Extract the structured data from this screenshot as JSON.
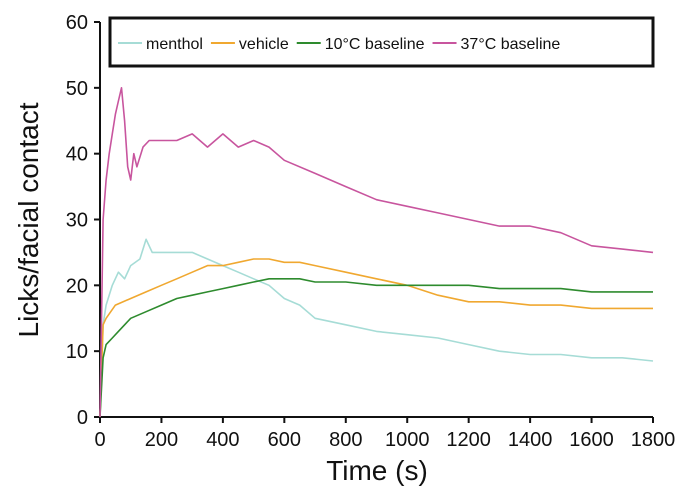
{
  "chart_data": {
    "type": "line",
    "xlabel": "Time (s)",
    "ylabel": "Licks/facial contact",
    "xlim": [
      0,
      1800
    ],
    "ylim": [
      0,
      60
    ],
    "xticks": [
      "0",
      "200",
      "400",
      "600",
      "800",
      "1000",
      "1200",
      "1400",
      "1600",
      "1800"
    ],
    "yticks": [
      "0",
      "10",
      "20",
      "30",
      "40",
      "50",
      "60"
    ],
    "grid": false,
    "legend_position": "top",
    "series": [
      {
        "name": "menthol",
        "color": "#a6dcd6",
        "x": [
          0,
          10,
          20,
          40,
          60,
          80,
          100,
          130,
          150,
          170,
          200,
          250,
          300,
          350,
          400,
          450,
          500,
          550,
          600,
          650,
          700,
          800,
          900,
          1000,
          1100,
          1200,
          1300,
          1400,
          1500,
          1600,
          1700,
          1800
        ],
        "y": [
          0,
          14,
          17,
          20,
          22,
          21,
          23,
          24,
          27,
          25,
          25,
          25,
          25,
          24,
          23,
          22,
          21,
          20,
          18,
          17,
          15,
          14,
          13,
          12.5,
          12,
          11,
          10,
          9.5,
          9.5,
          9,
          9,
          8.5
        ]
      },
      {
        "name": "vehicle",
        "color": "#f0a830",
        "x": [
          0,
          10,
          20,
          50,
          100,
          150,
          200,
          250,
          300,
          350,
          400,
          450,
          500,
          550,
          600,
          650,
          700,
          800,
          900,
          1000,
          1100,
          1200,
          1300,
          1400,
          1500,
          1600,
          1700,
          1800
        ],
        "y": [
          0,
          14,
          15,
          17,
          18,
          19,
          20,
          21,
          22,
          23,
          23,
          23.5,
          24,
          24,
          23.5,
          23.5,
          23,
          22,
          21,
          20,
          18.5,
          17.5,
          17.5,
          17,
          17,
          16.5,
          16.5,
          16.5
        ]
      },
      {
        "name": "10°C baseline",
        "color": "#2e8b2e",
        "x": [
          0,
          10,
          20,
          40,
          60,
          100,
          150,
          200,
          250,
          300,
          350,
          400,
          450,
          500,
          550,
          600,
          650,
          700,
          800,
          900,
          1000,
          1100,
          1200,
          1300,
          1400,
          1500,
          1600,
          1700,
          1800
        ],
        "y": [
          0,
          9,
          11,
          12,
          13,
          15,
          16,
          17,
          18,
          18.5,
          19,
          19.5,
          20,
          20.5,
          21,
          21,
          21,
          20.5,
          20.5,
          20,
          20,
          20,
          20,
          19.5,
          19.5,
          19.5,
          19,
          19,
          19
        ]
      },
      {
        "name": "37°C baseline",
        "color": "#c8559e",
        "x": [
          0,
          10,
          20,
          30,
          40,
          50,
          60,
          70,
          80,
          90,
          100,
          110,
          120,
          140,
          160,
          200,
          250,
          300,
          350,
          400,
          450,
          500,
          550,
          600,
          700,
          800,
          900,
          1000,
          1100,
          1200,
          1300,
          1400,
          1500,
          1600,
          1700,
          1800
        ],
        "y": [
          0,
          30,
          36,
          40,
          43,
          46,
          48,
          50,
          45,
          38,
          36,
          40,
          38,
          41,
          42,
          42,
          42,
          43,
          41,
          43,
          41,
          42,
          41,
          39,
          37,
          35,
          33,
          32,
          31,
          30,
          29,
          29,
          28,
          26,
          25.5,
          25
        ]
      }
    ]
  }
}
